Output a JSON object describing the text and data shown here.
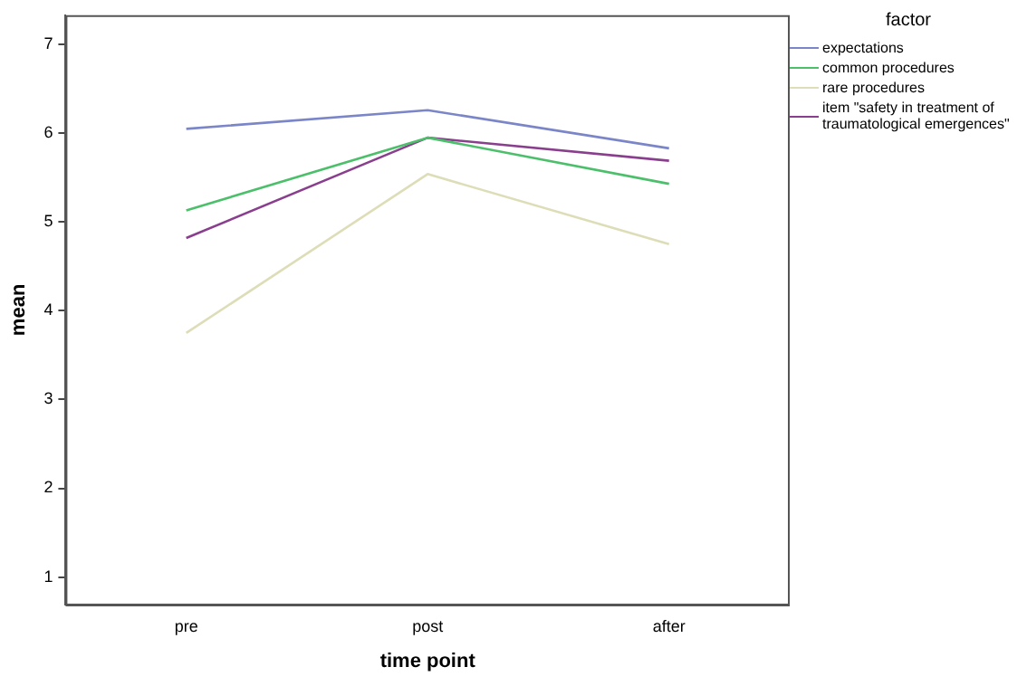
{
  "chart_data": {
    "type": "line",
    "xlabel": "time point",
    "ylabel": "mean",
    "legend_title": "factor",
    "legend": "top right",
    "grid": false,
    "marker": "none",
    "line_style": "solid",
    "categories": [
      "pre",
      "post",
      "after"
    ],
    "ylim": [
      0.69,
      7.33
    ],
    "yticks": [
      1,
      2,
      3,
      4,
      5,
      6,
      7
    ],
    "series": [
      {
        "name": "expectations",
        "color": "#7b86c9",
        "values": [
          6.05,
          6.26,
          5.83
        ]
      },
      {
        "name": "common procedures",
        "color": "#4cbf6b",
        "values": [
          5.13,
          5.95,
          5.43
        ]
      },
      {
        "name": "rare procedures",
        "color": "#ddddb8",
        "values": [
          3.75,
          5.54,
          4.75
        ]
      },
      {
        "name": "item \"safety in treatment of traumatological emergences\"",
        "color": "#8a3f8e",
        "values": [
          4.82,
          5.95,
          5.69
        ]
      }
    ]
  }
}
